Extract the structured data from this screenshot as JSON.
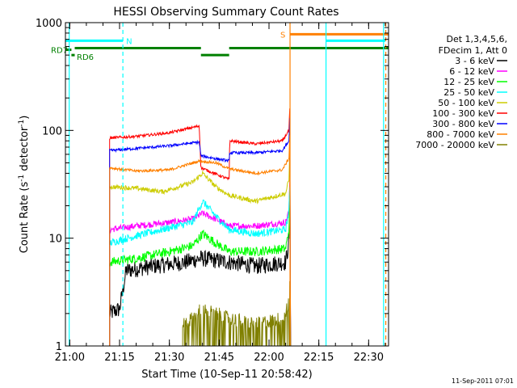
{
  "chart_data": {
    "type": "line",
    "title": "HESSI Observing Summary Count Rates",
    "xlabel": "Start Time (10-Sep-11 20:58:42)",
    "ylabel_main": "Count Rate (s",
    "ylabel_sup1": "-1",
    "ylabel_mid": " detector",
    "ylabel_sup2": "-1",
    "ylabel_end": ")",
    "xlim": [
      "20:58:42",
      "22:36:00"
    ],
    "ylim": [
      1,
      1000
    ],
    "yscale": "log",
    "x_ticks": [
      "21:00",
      "21:15",
      "21:30",
      "21:45",
      "22:00",
      "22:15",
      "22:30"
    ],
    "y_ticks": [
      "1",
      "10",
      "100",
      "1000"
    ],
    "timestamp": "11-Sep-2011 07:01",
    "legend": {
      "header1": "Det 1,3,4,5,6,",
      "header2": "FDecim 1, Att 0",
      "placement": "right",
      "entries": [
        {
          "label": "3 - 6 keV",
          "color": "#000000"
        },
        {
          "label": "6 - 12 keV",
          "color": "#ff00ff"
        },
        {
          "label": "12 - 25 keV",
          "color": "#00ff00"
        },
        {
          "label": "25 - 50 keV",
          "color": "#00ffff"
        },
        {
          "label": "50 - 100 keV",
          "color": "#cccc00"
        },
        {
          "label": "100 - 300 keV",
          "color": "#ff0000"
        },
        {
          "label": "300 - 800 keV",
          "color": "#0000ff"
        },
        {
          "label": "800 - 7000 keV",
          "color": "#ff8000"
        },
        {
          "label": "7000 - 20000 keV",
          "color": "#808000"
        }
      ]
    },
    "flags": [
      {
        "label": "RD7",
        "color": "#008000",
        "y": 560,
        "segments": [
          [
            "20:58:42",
            "21:00:30"
          ]
        ]
      },
      {
        "label": "RD6",
        "color": "#008000",
        "y": 500,
        "segments": [
          [
            "21:00:30",
            "21:01:30"
          ]
        ]
      },
      {
        "label": "N",
        "color": "#00ffff",
        "y": 680,
        "segments": [
          [
            "20:58:42",
            "21:16:00"
          ]
        ]
      },
      {
        "label": "S",
        "color": "#ff8000",
        "y": 780,
        "segments": [
          [
            "22:06:20",
            "22:36:00"
          ]
        ]
      },
      {
        "label": "",
        "color": "#00ffff",
        "y": 680,
        "segments": [
          [
            "22:17:10",
            "22:35:00"
          ]
        ]
      },
      {
        "label": "",
        "color": "#008000",
        "y": 580,
        "segments": [
          [
            "21:01:30",
            "21:39:30"
          ],
          [
            "21:48:00",
            "22:36:00"
          ]
        ]
      },
      {
        "label": "",
        "color": "#008000",
        "y": 500,
        "segments": [
          [
            "21:39:30",
            "21:48:00"
          ]
        ]
      }
    ],
    "vlines": [
      {
        "x": "20:59:50",
        "color": "#00ffff",
        "style": "solid"
      },
      {
        "x": "21:16:00",
        "color": "#00ffff",
        "style": "dashed"
      },
      {
        "x": "22:06:20",
        "color": "#ff8000",
        "style": "solid"
      },
      {
        "x": "22:17:10",
        "color": "#00ffff",
        "style": "solid"
      },
      {
        "x": "22:34:30",
        "color": "#00ffff",
        "style": "solid"
      },
      {
        "x": "22:35:10",
        "color": "#ff8000",
        "style": "dashed"
      }
    ],
    "series": [
      {
        "name": "3 - 6 keV",
        "color": "#000000",
        "noise": 0.18,
        "points": [
          [
            "21:12:00",
            2
          ],
          [
            "21:15:00",
            2.2
          ],
          [
            "21:17:00",
            5
          ],
          [
            "21:25:00",
            5.5
          ],
          [
            "21:35:00",
            6
          ],
          [
            "21:39:30",
            6.5
          ],
          [
            "21:48:00",
            6
          ],
          [
            "21:56:00",
            5.5
          ],
          [
            "22:05:00",
            6
          ],
          [
            "22:06:00",
            9
          ],
          [
            "22:06:15",
            30
          ]
        ]
      },
      {
        "name": "6 - 12 keV",
        "color": "#ff00ff",
        "noise": 0.07,
        "points": [
          [
            "21:12:00",
            12
          ],
          [
            "21:20:00",
            13
          ],
          [
            "21:30:00",
            14
          ],
          [
            "21:37:00",
            15
          ],
          [
            "21:40:00",
            17
          ],
          [
            "21:44:00",
            15
          ],
          [
            "21:48:00",
            13
          ],
          [
            "21:56:00",
            13
          ],
          [
            "22:05:00",
            14
          ],
          [
            "22:06:00",
            18
          ],
          [
            "22:06:15",
            35
          ]
        ]
      },
      {
        "name": "12 - 25 keV",
        "color": "#00ff00",
        "noise": 0.1,
        "points": [
          [
            "21:12:00",
            6
          ],
          [
            "21:20:00",
            6.5
          ],
          [
            "21:30:00",
            7.5
          ],
          [
            "21:37:00",
            8.5
          ],
          [
            "21:40:00",
            11
          ],
          [
            "21:44:00",
            9
          ],
          [
            "21:48:00",
            7.5
          ],
          [
            "21:56:00",
            7.5
          ],
          [
            "22:05:00",
            8
          ],
          [
            "22:06:00",
            12
          ],
          [
            "22:06:15",
            25
          ]
        ]
      },
      {
        "name": "25 - 50 keV",
        "color": "#00ffff",
        "noise": 0.08,
        "points": [
          [
            "21:12:00",
            9
          ],
          [
            "21:20:00",
            10.5
          ],
          [
            "21:30:00",
            12.5
          ],
          [
            "21:37:00",
            14
          ],
          [
            "21:40:00",
            22
          ],
          [
            "21:44:00",
            16
          ],
          [
            "21:48:00",
            12
          ],
          [
            "21:56:00",
            11
          ],
          [
            "22:05:00",
            12
          ],
          [
            "22:06:00",
            18
          ],
          [
            "22:06:15",
            30
          ]
        ]
      },
      {
        "name": "50 - 100 keV",
        "color": "#cccc00",
        "noise": 0.05,
        "points": [
          [
            "21:12:00",
            30
          ],
          [
            "21:20:00",
            29
          ],
          [
            "21:28:00",
            27
          ],
          [
            "21:37:00",
            33
          ],
          [
            "21:40:00",
            40
          ],
          [
            "21:44:00",
            30
          ],
          [
            "21:48:00",
            25
          ],
          [
            "21:56:00",
            22
          ],
          [
            "22:05:00",
            26
          ],
          [
            "22:06:00",
            35
          ],
          [
            "22:06:15",
            60
          ]
        ]
      },
      {
        "name": "100 - 300 keV",
        "color": "#ff0000",
        "noise": 0.03,
        "points": [
          [
            "21:12:00",
            85
          ],
          [
            "21:20:00",
            88
          ],
          [
            "21:30:00",
            95
          ],
          [
            "21:39:00",
            110
          ],
          [
            "21:39:30",
            45
          ],
          [
            "21:48:00",
            35
          ],
          [
            "21:48:10",
            80
          ],
          [
            "21:56:00",
            75
          ],
          [
            "22:04:00",
            80
          ],
          [
            "22:06:00",
            100
          ],
          [
            "22:06:15",
            160
          ]
        ]
      },
      {
        "name": "300 - 800 keV",
        "color": "#0000ff",
        "noise": 0.03,
        "points": [
          [
            "21:12:00",
            65
          ],
          [
            "21:20:00",
            68
          ],
          [
            "21:30:00",
            72
          ],
          [
            "21:39:00",
            78
          ],
          [
            "21:39:30",
            58
          ],
          [
            "21:48:00",
            52
          ],
          [
            "21:48:10",
            62
          ],
          [
            "21:56:00",
            62
          ],
          [
            "22:04:00",
            65
          ],
          [
            "22:06:00",
            80
          ],
          [
            "22:06:15",
            130
          ]
        ]
      },
      {
        "name": "800 - 7000 keV",
        "color": "#ff8000",
        "noise": 0.03,
        "points": [
          [
            "21:12:00",
            45
          ],
          [
            "21:20:00",
            42
          ],
          [
            "21:30:00",
            43
          ],
          [
            "21:39:00",
            52
          ],
          [
            "21:44:00",
            50
          ],
          [
            "21:48:00",
            44
          ],
          [
            "21:56:00",
            40
          ],
          [
            "22:04:00",
            43
          ],
          [
            "22:06:00",
            55
          ],
          [
            "22:06:15",
            90
          ]
        ]
      },
      {
        "name": "7000 - 20000 keV",
        "color": "#808000",
        "noise": 0.15,
        "sparse": true,
        "points": [
          [
            "21:34:00",
            1.6
          ],
          [
            "21:37:00",
            1.8
          ],
          [
            "21:39:30",
            2.2
          ],
          [
            "21:44:00",
            2
          ],
          [
            "21:48:00",
            1.8
          ],
          [
            "21:56:00",
            1.6
          ],
          [
            "22:04:00",
            1.8
          ],
          [
            "22:06:00",
            2.5
          ],
          [
            "22:06:15",
            4
          ]
        ]
      }
    ]
  }
}
